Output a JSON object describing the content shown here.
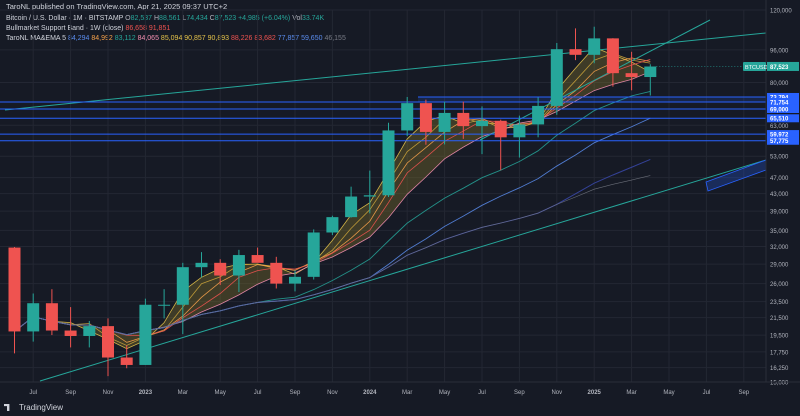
{
  "header": {
    "published": "TaroNL published on TradingView.com, Apr 21, 2025 09:37 UTC+2",
    "symbol_line": "Bitcoin / U.S. Dollar · 1M · BITSTAMP",
    "ohlc": [
      {
        "k": "O",
        "v": "82,537"
      },
      {
        "k": "H",
        "v": "88,561"
      },
      {
        "k": "L",
        "v": "74,434"
      },
      {
        "k": "C",
        "v": "87,523"
      }
    ],
    "change": "+4,985 (+6.04%)",
    "vol_label": "Vol",
    "vol_value": "33.74K",
    "indicator1_name": "Bullmarket Support Band · 1W (close)",
    "indicator1_values": [
      "86,658",
      "91,851"
    ],
    "indicator2_name": "TaroNL MA&EMA 5",
    "indicator2_values": [
      "84,294",
      "84,992",
      "83,112",
      "84,065",
      "85,094",
      "90,857",
      "90,893",
      "88,226",
      "83,682",
      "77,857",
      "59,650",
      "46,155"
    ]
  },
  "brand": "TradingView",
  "colors": {
    "background": "#161a25",
    "up_candle": "#26a69a",
    "down_candle": "#ef5350",
    "trendline": "#26a69a",
    "horizontal_lines": "#2962ff",
    "ribbon": "#8a7a2a"
  },
  "chart_data": {
    "type": "candlestick",
    "symbol": "BTCUSD",
    "timeframe": "1M",
    "y_scale": "log",
    "ylim": [
      15000,
      120000
    ],
    "y_ticks": [
      "120,000",
      "96,000",
      "80,000",
      "63,000",
      "53,000",
      "47,000",
      "43,000",
      "39,000",
      "35,000",
      "32,000",
      "29,000",
      "26,000",
      "23,500",
      "21,500",
      "19,500",
      "17,750",
      "16,250",
      "15,000"
    ],
    "x_ticks": [
      "Jul",
      "Sep",
      "Nov",
      "2023",
      "Mar",
      "May",
      "Jul",
      "Sep",
      "Nov",
      "2024",
      "Mar",
      "May",
      "Jul",
      "Sep",
      "Nov",
      "2025",
      "Mar",
      "May",
      "Jul",
      "Sep"
    ],
    "price_label": "BTCUSD",
    "last_price": "87,523",
    "level_labels": [
      "73,794",
      "71,754",
      "69,000",
      "65,510",
      "59,972",
      "57,775"
    ],
    "candles": [
      {
        "o": 31800,
        "h": 31900,
        "l": 17600,
        "c": 19900
      },
      {
        "o": 19900,
        "h": 24600,
        "l": 18800,
        "c": 23300
      },
      {
        "o": 23300,
        "h": 25200,
        "l": 19500,
        "c": 20000
      },
      {
        "o": 20000,
        "h": 22800,
        "l": 18200,
        "c": 19400
      },
      {
        "o": 19400,
        "h": 21100,
        "l": 18200,
        "c": 20500
      },
      {
        "o": 20500,
        "h": 21400,
        "l": 15500,
        "c": 17200
      },
      {
        "o": 17200,
        "h": 18400,
        "l": 16200,
        "c": 16500
      },
      {
        "o": 16500,
        "h": 23900,
        "l": 16500,
        "c": 23100
      },
      {
        "o": 23100,
        "h": 25200,
        "l": 21400,
        "c": 23100
      },
      {
        "o": 23100,
        "h": 29200,
        "l": 19600,
        "c": 28500
      },
      {
        "o": 28500,
        "h": 31000,
        "l": 26900,
        "c": 29200
      },
      {
        "o": 29200,
        "h": 29800,
        "l": 25800,
        "c": 27200
      },
      {
        "o": 27200,
        "h": 31400,
        "l": 24800,
        "c": 30500
      },
      {
        "o": 30500,
        "h": 31800,
        "l": 29500,
        "c": 29200
      },
      {
        "o": 29200,
        "h": 30200,
        "l": 25300,
        "c": 26000
      },
      {
        "o": 26000,
        "h": 28000,
        "l": 24900,
        "c": 27000
      },
      {
        "o": 27000,
        "h": 35200,
        "l": 26600,
        "c": 34600
      },
      {
        "o": 34600,
        "h": 38000,
        "l": 34100,
        "c": 37700
      },
      {
        "o": 37700,
        "h": 44700,
        "l": 37600,
        "c": 42300
      },
      {
        "o": 42300,
        "h": 48900,
        "l": 38500,
        "c": 42600
      },
      {
        "o": 42600,
        "h": 63900,
        "l": 42200,
        "c": 61200
      },
      {
        "o": 61200,
        "h": 73800,
        "l": 59300,
        "c": 71300
      },
      {
        "o": 71300,
        "h": 72700,
        "l": 56500,
        "c": 60700
      },
      {
        "o": 60700,
        "h": 71900,
        "l": 56600,
        "c": 67500
      },
      {
        "o": 67500,
        "h": 71900,
        "l": 58400,
        "c": 62700
      },
      {
        "o": 62700,
        "h": 70000,
        "l": 53600,
        "c": 64600
      },
      {
        "o": 64600,
        "h": 65000,
        "l": 49000,
        "c": 58900
      },
      {
        "o": 58900,
        "h": 66500,
        "l": 52600,
        "c": 63300
      },
      {
        "o": 63300,
        "h": 73600,
        "l": 58900,
        "c": 70200
      },
      {
        "o": 70200,
        "h": 99800,
        "l": 66800,
        "c": 96400
      },
      {
        "o": 96400,
        "h": 108300,
        "l": 90700,
        "c": 93400
      },
      {
        "o": 93400,
        "h": 109300,
        "l": 89100,
        "c": 102400
      },
      {
        "o": 102400,
        "h": 102500,
        "l": 78200,
        "c": 84300
      },
      {
        "o": 84300,
        "h": 95000,
        "l": 76600,
        "c": 82500
      },
      {
        "o": 82500,
        "h": 88600,
        "l": 74400,
        "c": 87500
      }
    ]
  }
}
